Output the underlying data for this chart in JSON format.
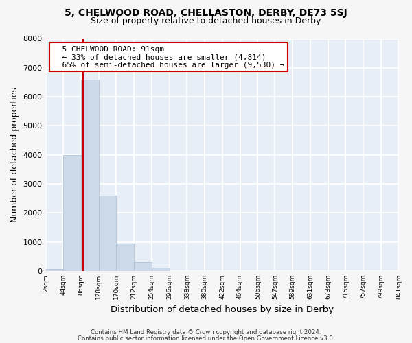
{
  "title1": "5, CHELWOOD ROAD, CHELLASTON, DERBY, DE73 5SJ",
  "title2": "Size of property relative to detached houses in Derby",
  "xlabel": "Distribution of detached houses by size in Derby",
  "ylabel": "Number of detached properties",
  "bar_color": "#ccd9e8",
  "bar_edge_color": "#aabcce",
  "fig_bg_color": "#f5f5f5",
  "ax_bg_color": "#e8eef5",
  "grid_color": "#ffffff",
  "vline_color": "#cc0000",
  "ann_border_color": "#cc0000",
  "bin_edges": [
    2,
    44,
    86,
    128,
    170,
    212,
    254,
    296,
    338,
    380,
    422,
    464,
    506,
    547,
    589,
    631,
    673,
    715,
    757,
    799,
    841
  ],
  "bin_labels": [
    "2sqm",
    "44sqm",
    "86sqm",
    "128sqm",
    "170sqm",
    "212sqm",
    "254sqm",
    "296sqm",
    "338sqm",
    "380sqm",
    "422sqm",
    "464sqm",
    "506sqm",
    "547sqm",
    "589sqm",
    "631sqm",
    "673sqm",
    "715sqm",
    "757sqm",
    "799sqm",
    "841sqm"
  ],
  "bar_heights": [
    60,
    4000,
    6600,
    2600,
    950,
    310,
    125,
    0,
    0,
    0,
    0,
    0,
    0,
    0,
    0,
    0,
    0,
    0,
    0,
    0
  ],
  "ylim": [
    0,
    8000
  ],
  "yticks": [
    0,
    1000,
    2000,
    3000,
    4000,
    5000,
    6000,
    7000,
    8000
  ],
  "vline_x": 91,
  "annotation_line1": "5 CHELWOOD ROAD: 91sqm",
  "annotation_line2": "← 33% of detached houses are smaller (4,814)",
  "annotation_line3": "65% of semi-detached houses are larger (9,530) →",
  "footer1": "Contains HM Land Registry data © Crown copyright and database right 2024.",
  "footer2": "Contains public sector information licensed under the Open Government Licence v3.0."
}
